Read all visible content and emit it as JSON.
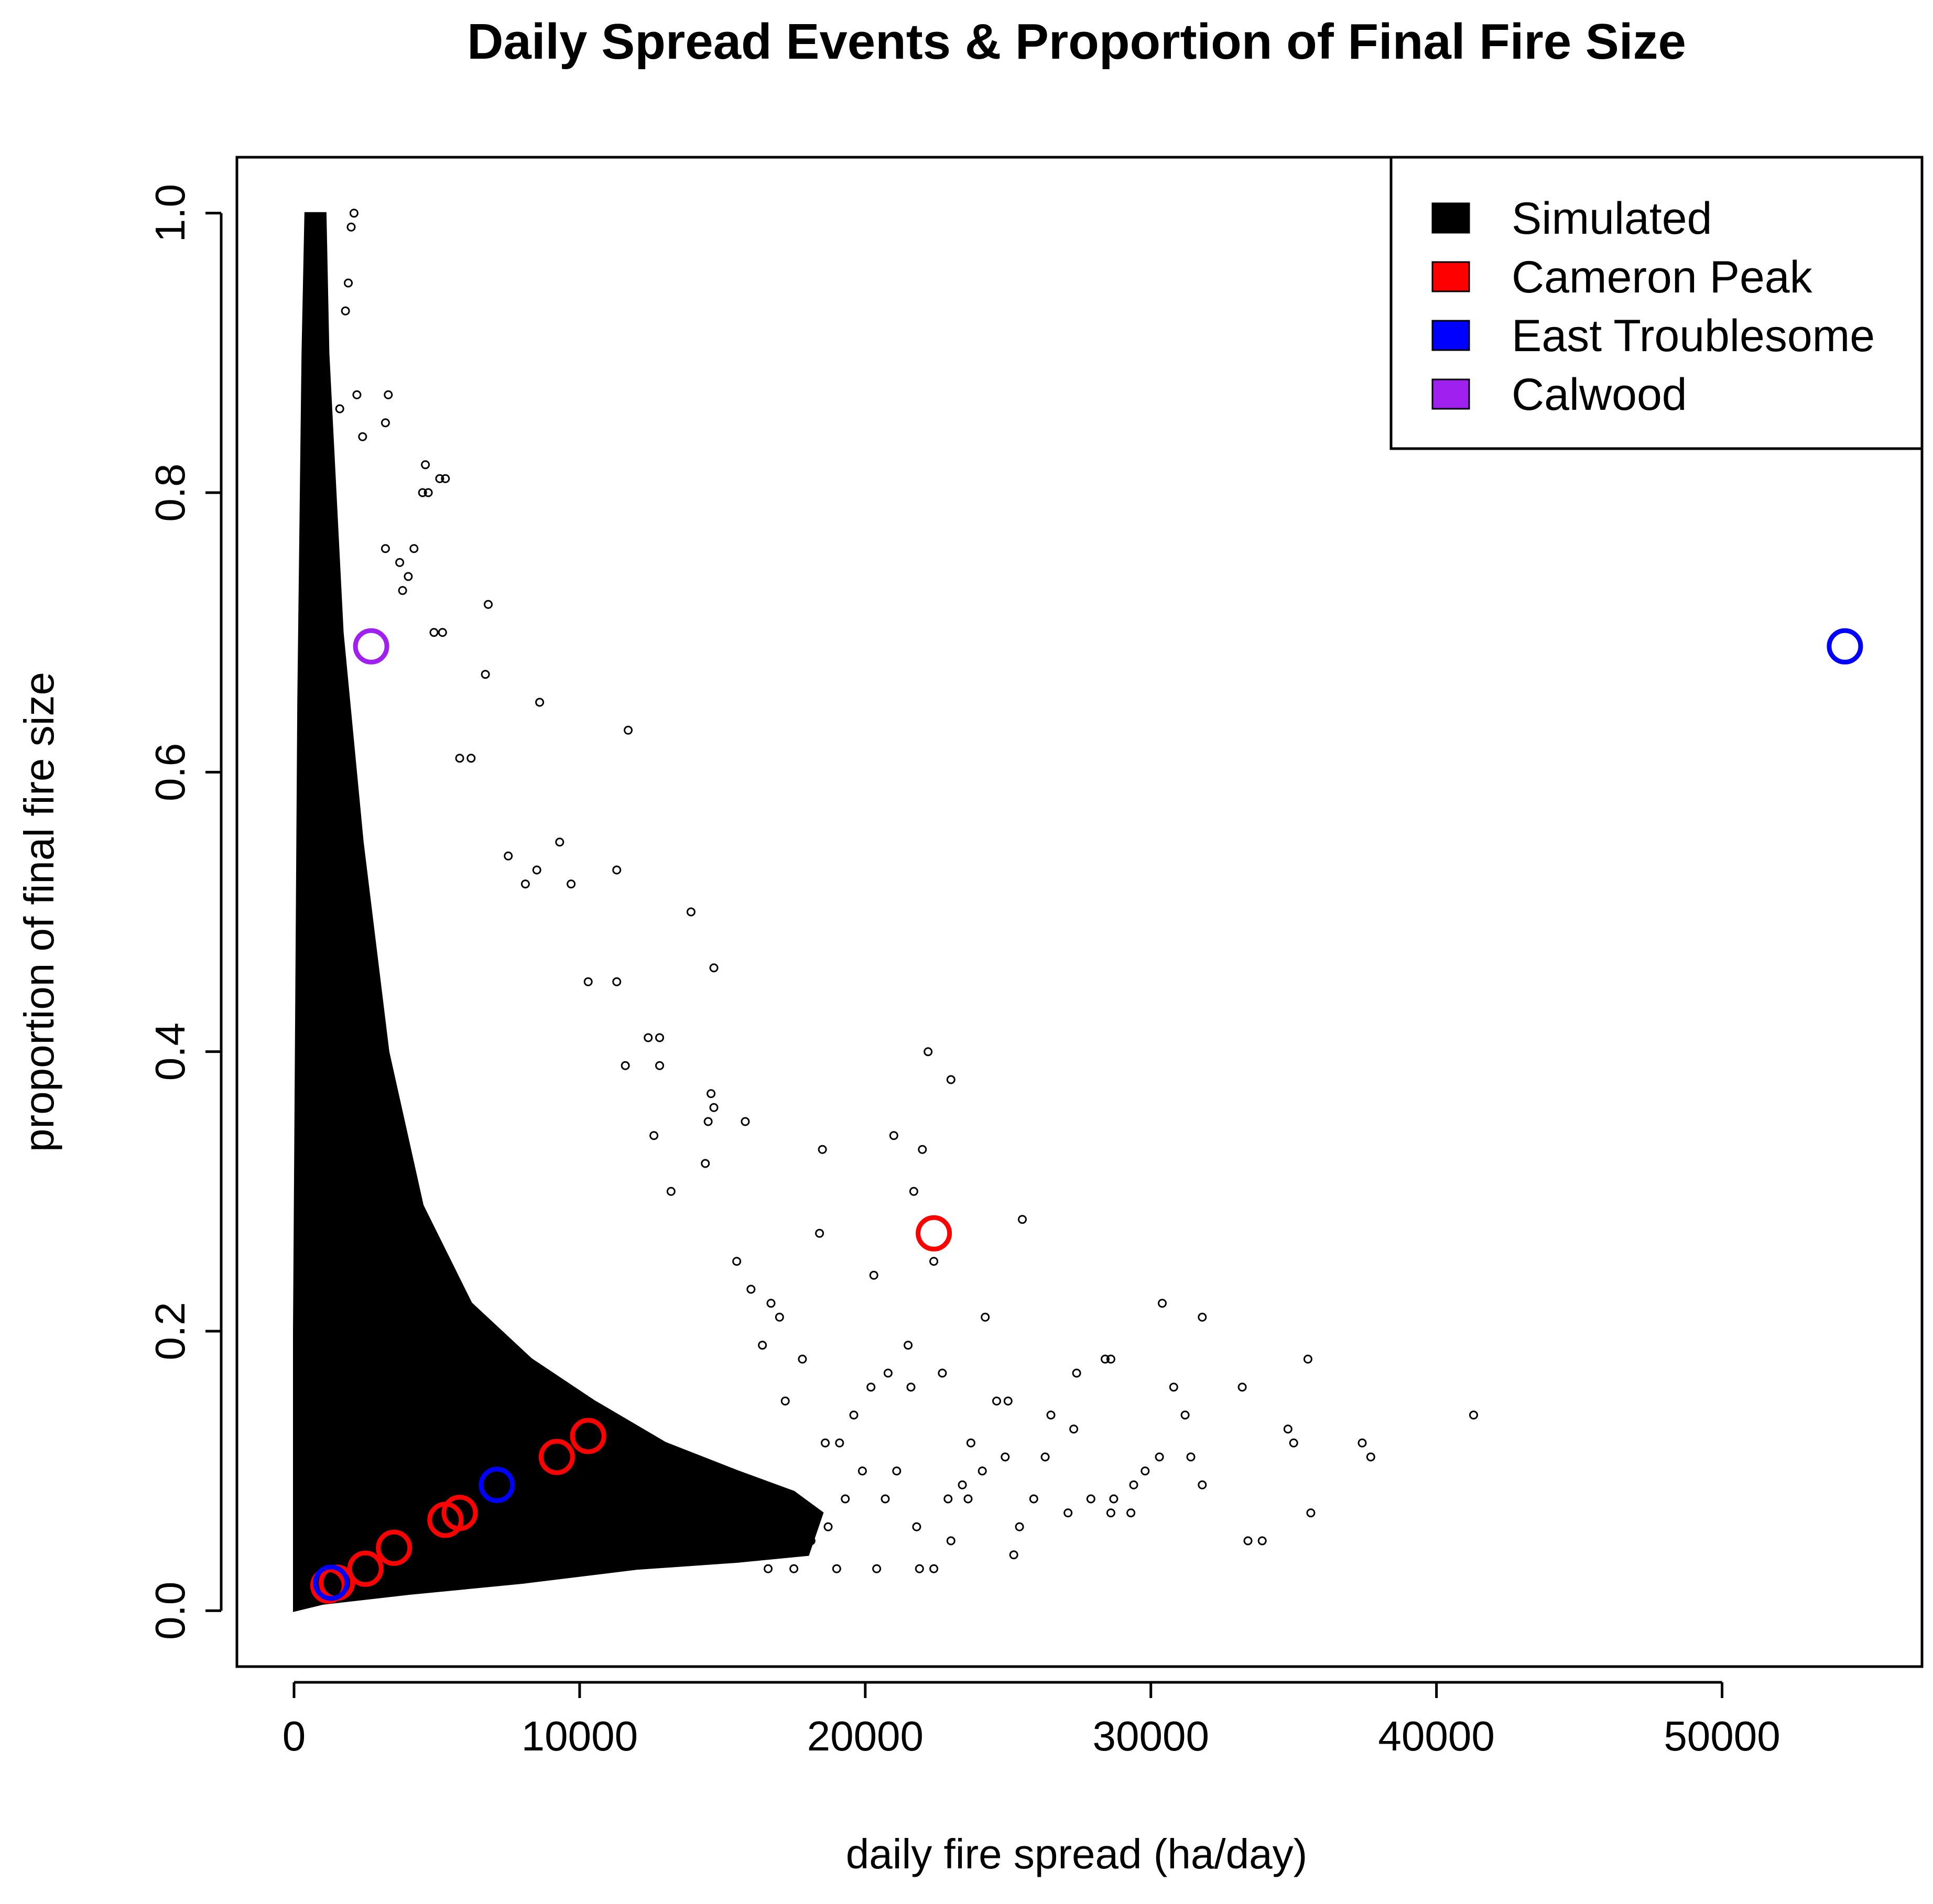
{
  "chart_data": {
    "type": "scatter",
    "title": "Daily Spread Events & Proportion of Final Fire Size",
    "xlabel": "daily fire spread (ha/day)",
    "ylabel": "proportion of final fire size",
    "xlim": [
      -2000,
      57000
    ],
    "ylim": [
      -0.04,
      1.04
    ],
    "x_ticks": [
      0,
      10000,
      20000,
      30000,
      40000,
      50000
    ],
    "x_tick_labels": [
      "0",
      "10000",
      "20000",
      "30000",
      "40000",
      "50000"
    ],
    "y_ticks": [
      0.0,
      0.2,
      0.4,
      0.6,
      0.8,
      1.0
    ],
    "y_tick_labels": [
      "0.0",
      "0.2",
      "0.4",
      "0.6",
      "0.8",
      "1.0"
    ],
    "grid": false,
    "legend_position": "top-right",
    "legend": [
      {
        "label": "Simulated",
        "color": "#000000"
      },
      {
        "label": "Cameron Peak",
        "color": "#ff0000"
      },
      {
        "label": "East Troublesome",
        "color": "#0000ff"
      },
      {
        "label": "Calwood",
        "color": "#a020f0"
      }
    ],
    "series": [
      {
        "name": "Simulated",
        "color": "#000000",
        "note_points": "dense cloud of thousands of points; representative outliers listed",
        "points": [
          [
            2100,
            1.0
          ],
          [
            2000,
            0.99
          ],
          [
            1900,
            0.95
          ],
          [
            1800,
            0.93
          ],
          [
            2200,
            0.87
          ],
          [
            1600,
            0.86
          ],
          [
            2400,
            0.84
          ],
          [
            3300,
            0.87
          ],
          [
            3200,
            0.85
          ],
          [
            4600,
            0.82
          ],
          [
            4700,
            0.8
          ],
          [
            5300,
            0.81
          ],
          [
            5100,
            0.81
          ],
          [
            4500,
            0.8
          ],
          [
            4200,
            0.76
          ],
          [
            6800,
            0.72
          ],
          [
            3800,
            0.73
          ],
          [
            3200,
            0.76
          ],
          [
            3700,
            0.75
          ],
          [
            4000,
            0.74
          ],
          [
            4900,
            0.7
          ],
          [
            5200,
            0.7
          ],
          [
            6700,
            0.67
          ],
          [
            8600,
            0.65
          ],
          [
            11700,
            0.63
          ],
          [
            5800,
            0.61
          ],
          [
            6200,
            0.61
          ],
          [
            7500,
            0.54
          ],
          [
            8100,
            0.52
          ],
          [
            8500,
            0.53
          ],
          [
            9300,
            0.55
          ],
          [
            9700,
            0.52
          ],
          [
            11300,
            0.53
          ],
          [
            13900,
            0.5
          ],
          [
            14700,
            0.46
          ],
          [
            10300,
            0.45
          ],
          [
            11300,
            0.45
          ],
          [
            11600,
            0.39
          ],
          [
            12400,
            0.41
          ],
          [
            12800,
            0.41
          ],
          [
            12800,
            0.39
          ],
          [
            14600,
            0.37
          ],
          [
            14700,
            0.36
          ],
          [
            15800,
            0.35
          ],
          [
            14400,
            0.32
          ],
          [
            14500,
            0.35
          ],
          [
            12600,
            0.34
          ],
          [
            13200,
            0.3
          ],
          [
            15500,
            0.25
          ],
          [
            18500,
            0.33
          ],
          [
            21000,
            0.34
          ],
          [
            22200,
            0.4
          ],
          [
            23000,
            0.38
          ],
          [
            22000,
            0.33
          ],
          [
            21700,
            0.3
          ],
          [
            22400,
            0.25
          ],
          [
            18400,
            0.27
          ],
          [
            20300,
            0.24
          ],
          [
            25500,
            0.28
          ],
          [
            24200,
            0.21
          ],
          [
            16000,
            0.23
          ],
          [
            16700,
            0.22
          ],
          [
            17000,
            0.21
          ],
          [
            30400,
            0.22
          ],
          [
            31800,
            0.21
          ],
          [
            28600,
            0.18
          ],
          [
            28400,
            0.18
          ],
          [
            27400,
            0.17
          ],
          [
            26500,
            0.14
          ],
          [
            27300,
            0.13
          ],
          [
            30800,
            0.16
          ],
          [
            31200,
            0.14
          ],
          [
            33200,
            0.16
          ],
          [
            35500,
            0.18
          ],
          [
            34800,
            0.13
          ],
          [
            35000,
            0.12
          ],
          [
            37400,
            0.12
          ],
          [
            37700,
            0.11
          ],
          [
            41300,
            0.14
          ],
          [
            31400,
            0.11
          ],
          [
            31800,
            0.09
          ],
          [
            30300,
            0.11
          ],
          [
            29800,
            0.1
          ],
          [
            29400,
            0.09
          ],
          [
            28700,
            0.08
          ],
          [
            27900,
            0.08
          ],
          [
            25900,
            0.08
          ],
          [
            25400,
            0.06
          ],
          [
            25200,
            0.04
          ],
          [
            23000,
            0.05
          ],
          [
            22400,
            0.03
          ],
          [
            21900,
            0.03
          ],
          [
            20400,
            0.03
          ],
          [
            19000,
            0.03
          ],
          [
            17500,
            0.03
          ],
          [
            16600,
            0.03
          ],
          [
            33400,
            0.05
          ],
          [
            33900,
            0.05
          ],
          [
            35600,
            0.07
          ],
          [
            27100,
            0.07
          ],
          [
            28600,
            0.07
          ],
          [
            29300,
            0.07
          ],
          [
            24600,
            0.15
          ],
          [
            25000,
            0.15
          ],
          [
            23700,
            0.12
          ],
          [
            23400,
            0.09
          ],
          [
            22900,
            0.08
          ],
          [
            21800,
            0.06
          ],
          [
            20200,
            0.16
          ],
          [
            20800,
            0.17
          ],
          [
            21600,
            0.16
          ],
          [
            19600,
            0.14
          ],
          [
            19100,
            0.12
          ],
          [
            18600,
            0.12
          ],
          [
            17800,
            0.18
          ],
          [
            17200,
            0.15
          ],
          [
            16400,
            0.19
          ],
          [
            22700,
            0.17
          ],
          [
            21500,
            0.19
          ],
          [
            21100,
            0.1
          ],
          [
            20700,
            0.08
          ],
          [
            19900,
            0.1
          ],
          [
            19300,
            0.08
          ],
          [
            18700,
            0.06
          ],
          [
            18100,
            0.05
          ],
          [
            17700,
            0.06
          ],
          [
            26300,
            0.11
          ],
          [
            24900,
            0.11
          ],
          [
            24100,
            0.1
          ],
          [
            23600,
            0.08
          ]
        ]
      },
      {
        "name": "Cameron Peak",
        "color": "#ff0000",
        "points": [
          [
            22400,
            0.27
          ],
          [
            10300,
            0.125
          ],
          [
            9200,
            0.11
          ],
          [
            5800,
            0.07
          ],
          [
            5300,
            0.065
          ],
          [
            3500,
            0.045
          ],
          [
            2500,
            0.03
          ],
          [
            1500,
            0.02
          ],
          [
            1200,
            0.018
          ]
        ]
      },
      {
        "name": "East Troublesome",
        "color": "#0000ff",
        "points": [
          [
            54300,
            0.69
          ],
          [
            7100,
            0.09
          ],
          [
            1300,
            0.02
          ]
        ]
      },
      {
        "name": "Calwood",
        "color": "#a020f0",
        "points": [
          [
            2700,
            0.69
          ]
        ]
      }
    ]
  }
}
